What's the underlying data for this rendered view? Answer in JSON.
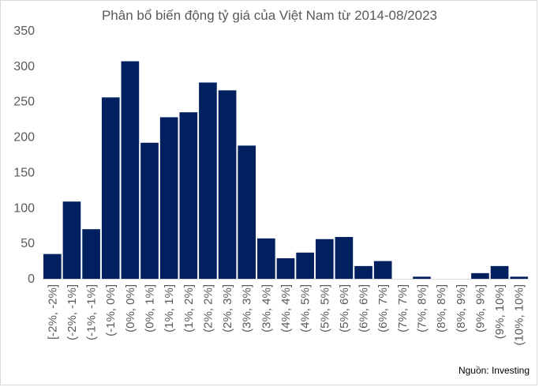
{
  "chart_data": {
    "type": "bar",
    "title": "Phân bổ biến động tỷ giá của Việt Nam  từ 2014-08/2023",
    "xlabel": "",
    "ylabel": "",
    "ylim": [
      0,
      350
    ],
    "yticks": [
      0,
      50,
      100,
      150,
      200,
      250,
      300,
      350
    ],
    "grid": false,
    "legend": "none",
    "bar_color": "#002060",
    "categories": [
      "[-2%, -2%]",
      "(-2%, -1%]",
      "(-1%, -1%]",
      "(-1%, 0%]",
      "(0%, 0%]",
      "(0%, 1%]",
      "(1%, 1%]",
      "(1%, 2%]",
      "(2%, 2%]",
      "(2%, 3%]",
      "(3%, 3%]",
      "(3%, 4%]",
      "(4%, 4%]",
      "(4%, 5%]",
      "(5%, 5%]",
      "(5%, 6%]",
      "(6%, 6%]",
      "(6%, 7%]",
      "(7%, 7%]",
      "(7%, 8%]",
      "(8%, 8%]",
      "(8%, 9%]",
      "(9%, 9%]",
      "(9%, 10%]",
      "(10%, 10%]"
    ],
    "values": [
      35,
      109,
      70,
      256,
      307,
      192,
      228,
      235,
      277,
      266,
      188,
      57,
      29,
      37,
      56,
      59,
      18,
      25,
      0,
      3,
      0,
      0,
      8,
      18,
      3
    ]
  },
  "source": "Nguồn: Investing"
}
